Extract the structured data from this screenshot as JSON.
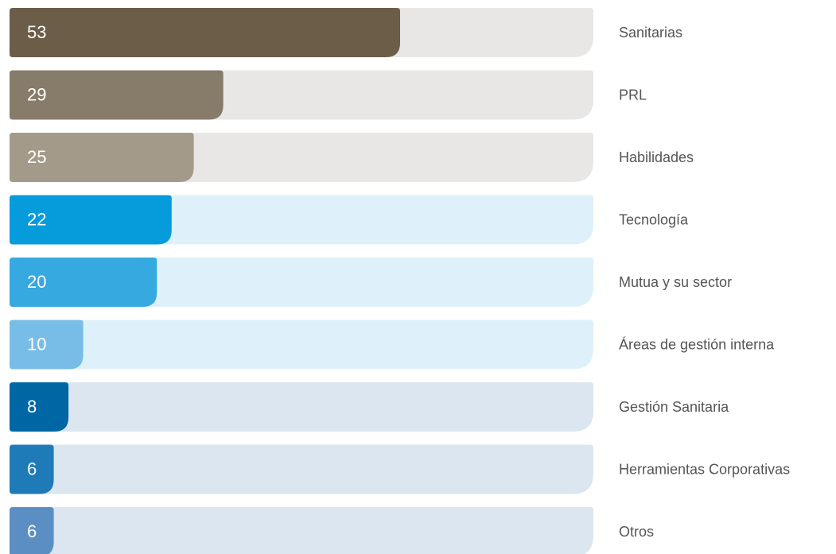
{
  "chart_data": {
    "type": "bar",
    "categories": [
      "Sanitarias",
      "PRL",
      "Habilidades",
      "Tecnología",
      "Mutua y su sector",
      "Áreas de gestión interna",
      "Gestión Sanitaria",
      "Herramientas Corporativas",
      "Otros"
    ],
    "values": [
      53,
      29,
      25,
      22,
      20,
      10,
      8,
      6,
      6
    ],
    "colors": [
      "#6b5d48",
      "#877b6a",
      "#a39a89",
      "#069cdc",
      "#35a9e0",
      "#78bde8",
      "#0067a5",
      "#1f7ab8",
      "#5b8fc4"
    ],
    "track_colors": [
      "#e9e7e5",
      "#e9e7e5",
      "#e9e7e5",
      "#def1fa",
      "#def1fa",
      "#def1fa",
      "#dbe6f0",
      "#dbe6f0",
      "#dbe6f0"
    ]
  }
}
